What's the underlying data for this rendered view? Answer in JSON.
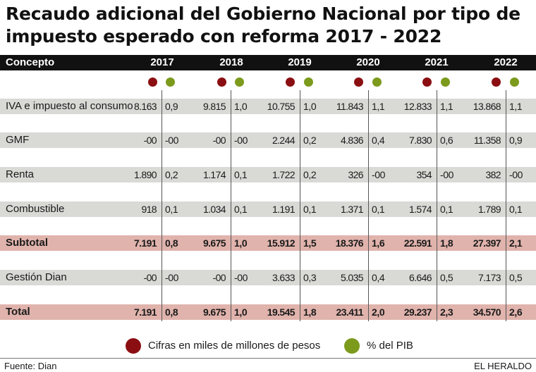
{
  "title": "Recaudo adicional del Gobierno Nacional por tipo de impuesto esperado con reforma 2017 - 2022",
  "header": {
    "concepto": "Concepto",
    "years": [
      "2017",
      "2018",
      "2019",
      "2020",
      "2021",
      "2022"
    ]
  },
  "colors": {
    "cifras": "#8b0f12",
    "pib": "#7c9a1c",
    "row_gray": "#d9d9d6",
    "row_pink": "#e0b3ac"
  },
  "rows": [
    {
      "concepto": "IVA e impuesto al consumo",
      "values": [
        "8.163",
        "9.815",
        "10.755",
        "11.843",
        "12.833",
        "13.868"
      ],
      "pib": [
        "0,9",
        "1,0",
        "1,0",
        "1,1",
        "1,1",
        "1,1"
      ]
    },
    {
      "concepto": "GMF",
      "values": [
        "-00",
        "-00",
        "2.244",
        "4.836",
        "7.830",
        "11.358"
      ],
      "pib": [
        "-00",
        "-00",
        "0,2",
        "0,4",
        "0,6",
        "0,9"
      ]
    },
    {
      "concepto": "Renta",
      "values": [
        "1.890",
        "1.174",
        "1.722",
        "326",
        "354",
        "382"
      ],
      "pib": [
        "0,2",
        "0,1",
        "0,2",
        "-00",
        "-00",
        "-00"
      ]
    },
    {
      "concepto": "Combustible",
      "values": [
        "918",
        "1.034",
        "1.191",
        "1.371",
        "1.574",
        "1.789"
      ],
      "pib": [
        "0,1",
        "0,1",
        "0,1",
        "0,1",
        "0,1",
        "0,1"
      ]
    },
    {
      "concepto": "Subtotal",
      "values": [
        "7.191",
        "9.675",
        "15.912",
        "18.376",
        "22.591",
        "27.397"
      ],
      "pib": [
        "0,8",
        "1,0",
        "1,5",
        "1,6",
        "1,8",
        "2,1"
      ]
    },
    {
      "concepto": "Gestión Dian",
      "values": [
        "-00",
        "-00",
        "3.633",
        "5.035",
        "6.646",
        "7.173"
      ],
      "pib": [
        "-00",
        "-00",
        "0,3",
        "0,4",
        "0,5",
        "0,5"
      ]
    },
    {
      "concepto": "Total",
      "values": [
        "7.191",
        "9.675",
        "19.545",
        "23.411",
        "29.237",
        "34.570"
      ],
      "pib": [
        "0,8",
        "1,0",
        "1,8",
        "2,0",
        "2,3",
        "2,6"
      ]
    }
  ],
  "legend": {
    "cifras": "Cifras en miles de millones de pesos",
    "pib": "% del PIB"
  },
  "footer": {
    "source": "Fuente: Dian",
    "brand": "EL HERALDO"
  }
}
